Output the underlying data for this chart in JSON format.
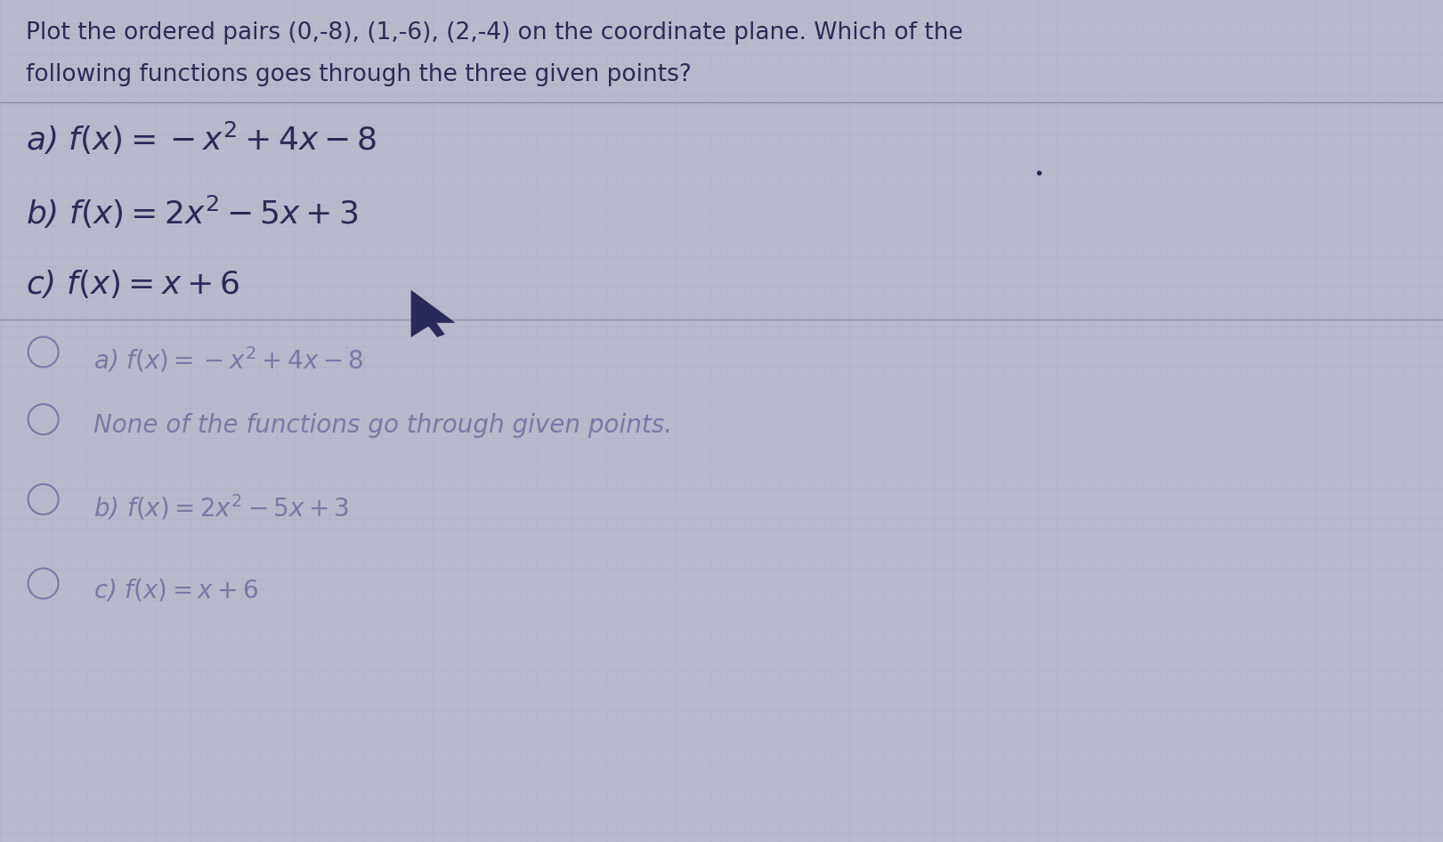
{
  "bg_color_top": "#b8b8cc",
  "bg_color": "#b4b4cc",
  "grid_color": "#a0a0bc",
  "text_color_dark": "#2a2a5a",
  "text_color_light": "#7878a8",
  "question_line1": "Plot the ordered pairs (0,-8), (1,-6), (2,-4) on the coordinate plane. Which of the",
  "question_line2": "following functions goes through the three given points?",
  "choice_a": "a) $f(x) = -x^2 + 4x - 8$",
  "choice_b": "b) $f(x) = 2x^2 - 5x + 3$",
  "choice_c": "c) $f(x) = x + 6$",
  "ans_a": "a) $f(x) = -x^2 + 4x - 8$",
  "ans_none": "None of the functions go through given points.",
  "ans_b": "b) $f(x) = 2x^2 - 5x + 3$",
  "ans_c": "c) $f(x) = x + 6$",
  "question_fontsize": 19,
  "choice_fontsize": 26,
  "answer_fontsize": 20,
  "figsize": [
    16.21,
    9.46
  ]
}
